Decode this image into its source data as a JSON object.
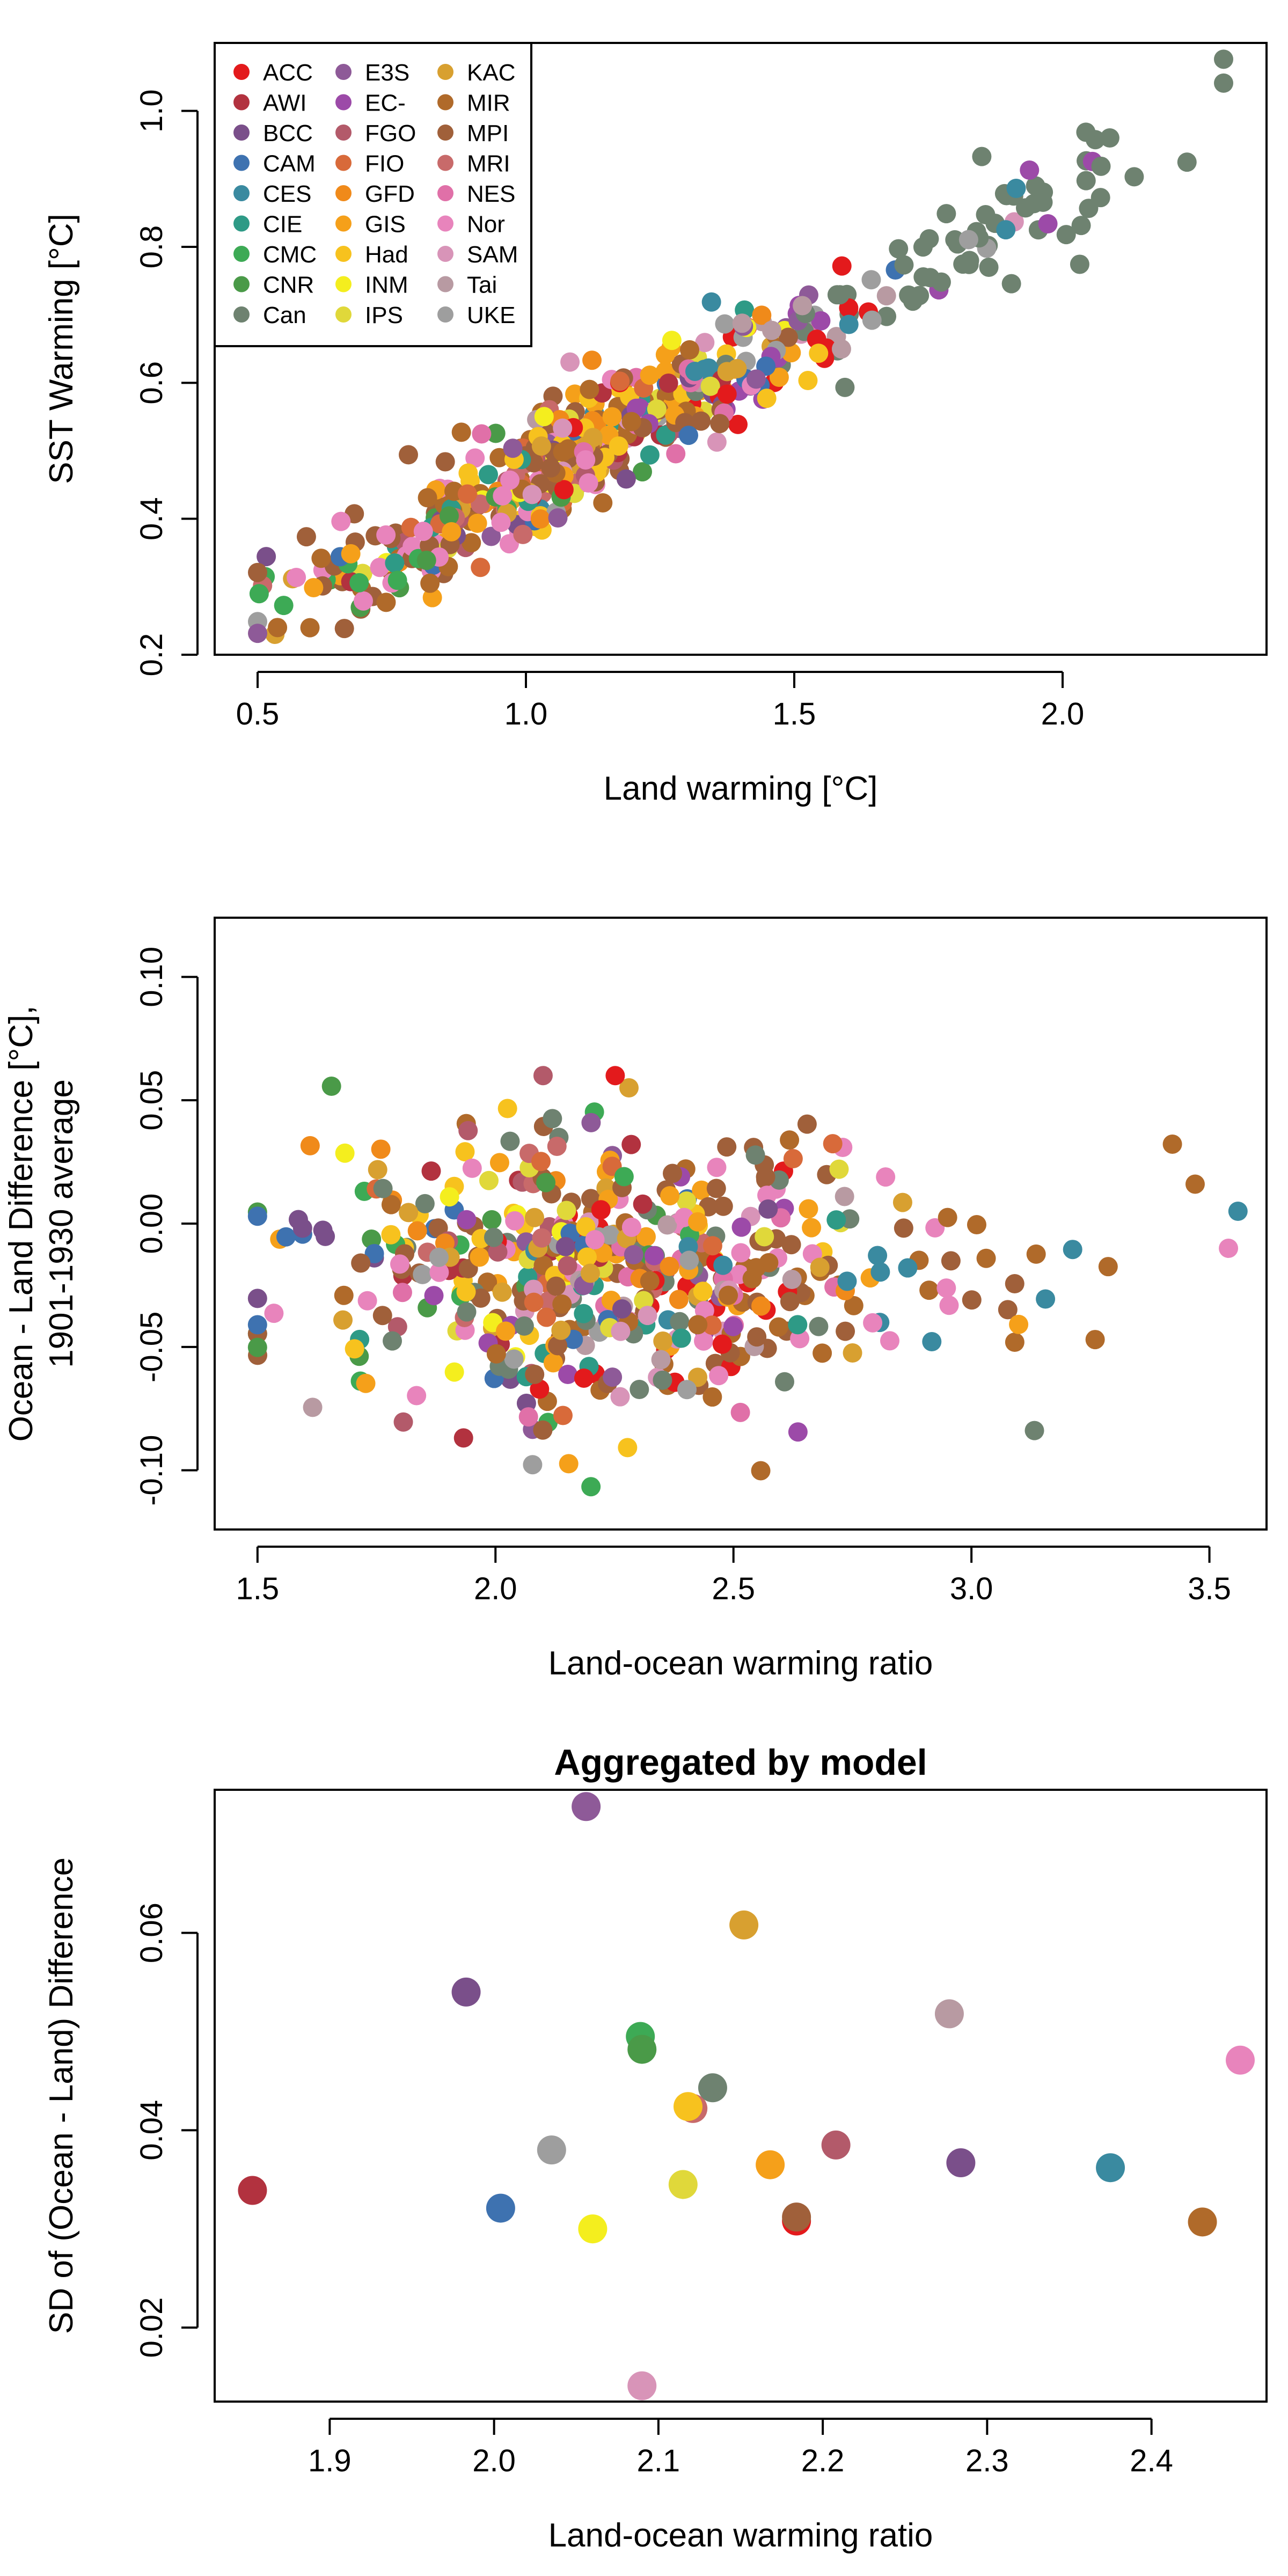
{
  "models": [
    {
      "code": "ACC",
      "color": "#e31a1c"
    },
    {
      "code": "AWI",
      "color": "#b2323f"
    },
    {
      "code": "BCC",
      "color": "#7a4f8a"
    },
    {
      "code": "CAM",
      "color": "#3e72b0"
    },
    {
      "code": "CES",
      "color": "#3a8aa0"
    },
    {
      "code": "CIE",
      "color": "#2e9a86"
    },
    {
      "code": "CMC",
      "color": "#3daa55"
    },
    {
      "code": "CNR",
      "color": "#4a9a48"
    },
    {
      "code": "Can",
      "color": "#6e8270"
    },
    {
      "code": "E3S",
      "color": "#8e5a98"
    },
    {
      "code": "EC-",
      "color": "#9c4aa8"
    },
    {
      "code": "FGO",
      "color": "#b35a6a"
    },
    {
      "code": "FIO",
      "color": "#d86a3a"
    },
    {
      "code": "GFD",
      "color": "#f08a1a"
    },
    {
      "code": "GIS",
      "color": "#f5a01a"
    },
    {
      "code": "Had",
      "color": "#f7c21e"
    },
    {
      "code": "INM",
      "color": "#f4ee1e"
    },
    {
      "code": "IPS",
      "color": "#e0d83a"
    },
    {
      "code": "KAC",
      "color": "#d8a030"
    },
    {
      "code": "MIR",
      "color": "#b06a2a"
    },
    {
      "code": "MPI",
      "color": "#a0603a"
    },
    {
      "code": "MRI",
      "color": "#c86a6a"
    },
    {
      "code": "NES",
      "color": "#e070a8"
    },
    {
      "code": "Nor",
      "color": "#e884bc"
    },
    {
      "code": "SAM",
      "color": "#d894b8"
    },
    {
      "code": "Tai",
      "color": "#b89aa2"
    },
    {
      "code": "UKE",
      "color": "#9e9e9e"
    }
  ],
  "chart_data": [
    {
      "type": "scatter",
      "title": "",
      "xlabel": "Land warming [°C]",
      "ylabel": "SST Warming [°C]",
      "xlim": [
        0.42,
        2.38
      ],
      "ylim": [
        0.2,
        1.1
      ],
      "xticks": [
        "0.5",
        "1.0",
        "1.5",
        "2.0"
      ],
      "yticks": [
        "0.2",
        "0.4",
        "0.6",
        "0.8",
        "1.0"
      ],
      "legend_position": "top-left",
      "note": "Each point is one model-period sample; colored by model. Points trend linearly upward from (0.5, 0.34) to (2.3, 1.02)."
    },
    {
      "type": "scatter",
      "title": "",
      "xlabel": "Land-ocean warming ratio",
      "ylabel": "Ocean - Land Difference [°C],",
      "ylabel2": "1901-1930 average",
      "xlim": [
        1.41,
        3.62
      ],
      "ylim": [
        -0.124,
        0.124
      ],
      "xticks": [
        "1.5",
        "2.0",
        "2.5",
        "3.0",
        "3.5"
      ],
      "yticks": [
        "-0.10",
        "-0.05",
        "0.00",
        "0.05",
        "0.10"
      ],
      "note": "Cloud of points centered near ratio 2.2 and difference -0.02."
    },
    {
      "type": "scatter",
      "title": "Aggregated by model",
      "xlabel": "Land-ocean warming ratio",
      "ylabel": "SD of (Ocean - Land) Difference",
      "xlim": [
        1.83,
        2.47
      ],
      "ylim": [
        0.0125,
        0.0745
      ],
      "xticks": [
        "1.9",
        "2.0",
        "2.1",
        "2.2",
        "2.3",
        "2.4"
      ],
      "yticks": [
        "0.02",
        "0.04",
        "0.06"
      ],
      "points": [
        {
          "model": "AWI",
          "x": 1.853,
          "y": 0.0339
        },
        {
          "model": "BCC",
          "x": 1.983,
          "y": 0.054
        },
        {
          "model": "CAM",
          "x": 2.004,
          "y": 0.0321
        },
        {
          "model": "UKE",
          "x": 2.035,
          "y": 0.038
        },
        {
          "model": "E3S",
          "x": 2.056,
          "y": 0.0728
        },
        {
          "model": "INM",
          "x": 2.06,
          "y": 0.03
        },
        {
          "model": "CMC",
          "x": 2.089,
          "y": 0.0495
        },
        {
          "model": "CNR",
          "x": 2.09,
          "y": 0.0482
        },
        {
          "model": "SAM",
          "x": 2.09,
          "y": 0.0141
        },
        {
          "model": "MRI",
          "x": 2.121,
          "y": 0.0422
        },
        {
          "model": "Had",
          "x": 2.118,
          "y": 0.0424
        },
        {
          "model": "IPS",
          "x": 2.115,
          "y": 0.0345
        },
        {
          "model": "Can",
          "x": 2.133,
          "y": 0.0443
        },
        {
          "model": "KAC",
          "x": 2.152,
          "y": 0.0608
        },
        {
          "model": "GIS",
          "x": 2.168,
          "y": 0.0365
        },
        {
          "model": "ACC",
          "x": 2.184,
          "y": 0.0308
        },
        {
          "model": "MPI",
          "x": 2.184,
          "y": 0.0312
        },
        {
          "model": "FGO",
          "x": 2.208,
          "y": 0.0385
        },
        {
          "model": "Tai",
          "x": 2.277,
          "y": 0.0518
        },
        {
          "model": "BCC",
          "x": 2.284,
          "y": 0.0367
        },
        {
          "model": "CES",
          "x": 2.375,
          "y": 0.0362
        },
        {
          "model": "MIR",
          "x": 2.431,
          "y": 0.0307
        },
        {
          "model": "Nor",
          "x": 2.454,
          "y": 0.0471
        }
      ]
    }
  ]
}
